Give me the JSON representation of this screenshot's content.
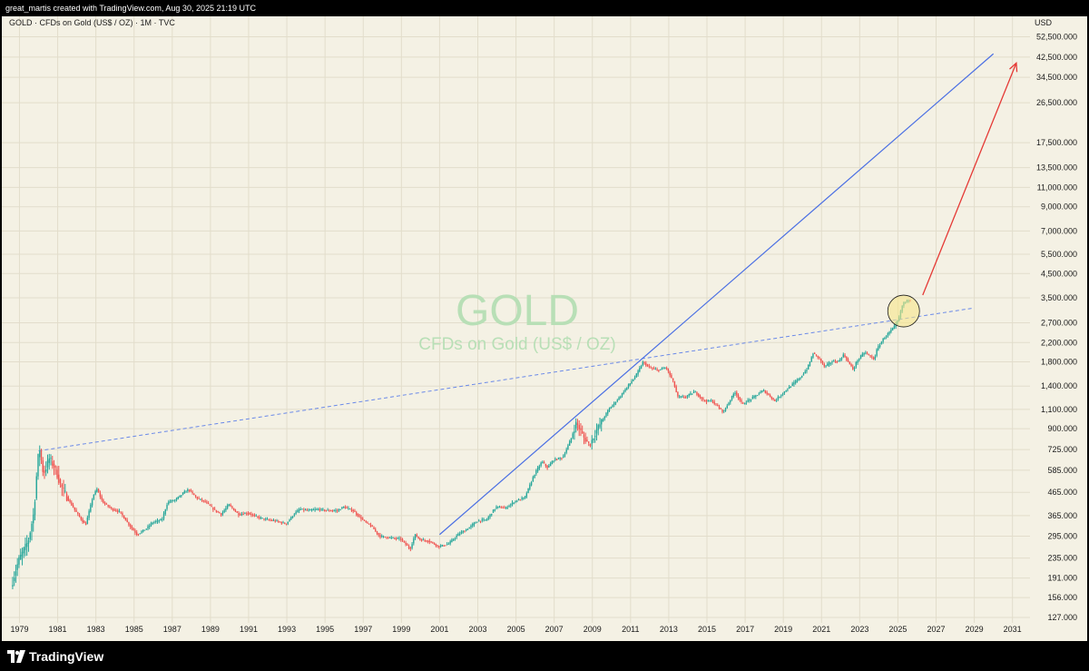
{
  "header": {
    "caption": "great_martis created with TradingView.com, Aug 30, 2025 21:19 UTC"
  },
  "chart": {
    "symbol_line": "GOLD · CFDs on Gold (US$ / OZ) · 1M · TVC",
    "watermark_symbol": "GOLD",
    "watermark_desc": "CFDs on Gold (US$ / OZ)",
    "currency": "USD"
  },
  "chart_data": {
    "type": "candlestick",
    "interval": "1M",
    "log_scale": true,
    "grid": true,
    "y_tick_labels": [
      "52,500.000",
      "42,500.000",
      "34,500.000",
      "26,500.000",
      "17,500.000",
      "13,500.000",
      "11,000.000",
      "9,000.000",
      "7,000.000",
      "5,500.000",
      "4,500.000",
      "3,500.000",
      "2,700.000",
      "2,200.000",
      "1,800.000",
      "1,400.000",
      "1,100.000",
      "900.000",
      "725.000",
      "585.000",
      "465.000",
      "365.000",
      "295.000",
      "235.000",
      "191.000",
      "156.000",
      "127.000"
    ],
    "y_tick_values": [
      52500,
      42500,
      34500,
      26500,
      17500,
      13500,
      11000,
      9000,
      7000,
      5500,
      4500,
      3500,
      2700,
      2200,
      1800,
      1400,
      1100,
      900,
      725,
      585,
      465,
      365,
      295,
      235,
      191,
      156,
      127
    ],
    "x_tick_labels": [
      "1979",
      "1981",
      "1983",
      "1985",
      "1987",
      "1989",
      "1991",
      "1993",
      "1995",
      "1997",
      "1999",
      "2001",
      "2003",
      "2005",
      "2007",
      "2009",
      "2011",
      "2013",
      "2015",
      "2017",
      "2019",
      "2021",
      "2023",
      "2025",
      "2027",
      "2029",
      "2031"
    ],
    "ylim": [
      127,
      52500
    ],
    "xlim": [
      1978.7,
      2031.9
    ],
    "price_path": [
      [
        1978.6,
        175
      ],
      [
        1979.0,
        230
      ],
      [
        1979.5,
        280
      ],
      [
        1979.8,
        380
      ],
      [
        1980.0,
        660
      ],
      [
        1980.1,
        720
      ],
      [
        1980.3,
        560
      ],
      [
        1980.6,
        660
      ],
      [
        1980.9,
        600
      ],
      [
        1981.2,
        500
      ],
      [
        1981.6,
        430
      ],
      [
        1982.0,
        380
      ],
      [
        1982.5,
        330
      ],
      [
        1982.9,
        450
      ],
      [
        1983.1,
        480
      ],
      [
        1983.4,
        420
      ],
      [
        1983.9,
        390
      ],
      [
        1984.3,
        380
      ],
      [
        1984.8,
        330
      ],
      [
        1985.2,
        300
      ],
      [
        1985.7,
        320
      ],
      [
        1986.0,
        340
      ],
      [
        1986.5,
        350
      ],
      [
        1986.8,
        420
      ],
      [
        1987.2,
        430
      ],
      [
        1987.6,
        460
      ],
      [
        1987.9,
        480
      ],
      [
        1988.3,
        440
      ],
      [
        1988.8,
        420
      ],
      [
        1989.2,
        390
      ],
      [
        1989.6,
        370
      ],
      [
        1990.0,
        410
      ],
      [
        1990.5,
        370
      ],
      [
        1991.0,
        375
      ],
      [
        1991.5,
        360
      ],
      [
        1992.0,
        350
      ],
      [
        1992.5,
        345
      ],
      [
        1993.0,
        335
      ],
      [
        1993.4,
        370
      ],
      [
        1993.7,
        390
      ],
      [
        1994.2,
        385
      ],
      [
        1994.7,
        390
      ],
      [
        1995.2,
        385
      ],
      [
        1995.7,
        385
      ],
      [
        1996.0,
        400
      ],
      [
        1996.5,
        385
      ],
      [
        1997.0,
        350
      ],
      [
        1997.5,
        325
      ],
      [
        1997.9,
        295
      ],
      [
        1998.5,
        290
      ],
      [
        1999.0,
        287
      ],
      [
        1999.5,
        258
      ],
      [
        1999.75,
        300
      ],
      [
        2000.0,
        285
      ],
      [
        2000.5,
        280
      ],
      [
        2001.0,
        265
      ],
      [
        2001.5,
        272
      ],
      [
        2002.0,
        300
      ],
      [
        2002.5,
        318
      ],
      [
        2003.0,
        345
      ],
      [
        2003.5,
        350
      ],
      [
        2004.0,
        400
      ],
      [
        2004.5,
        395
      ],
      [
        2005.0,
        425
      ],
      [
        2005.5,
        440
      ],
      [
        2006.0,
        560
      ],
      [
        2006.4,
        640
      ],
      [
        2006.7,
        600
      ],
      [
        2007.0,
        650
      ],
      [
        2007.5,
        670
      ],
      [
        2007.9,
        800
      ],
      [
        2008.2,
        960
      ],
      [
        2008.6,
        820
      ],
      [
        2008.9,
        760
      ],
      [
        2009.3,
        900
      ],
      [
        2009.9,
        1100
      ],
      [
        2010.4,
        1230
      ],
      [
        2010.9,
        1400
      ],
      [
        2011.3,
        1550
      ],
      [
        2011.7,
        1800
      ],
      [
        2012.0,
        1700
      ],
      [
        2012.5,
        1650
      ],
      [
        2012.9,
        1700
      ],
      [
        2013.3,
        1450
      ],
      [
        2013.5,
        1250
      ],
      [
        2013.9,
        1250
      ],
      [
        2014.4,
        1320
      ],
      [
        2014.9,
        1200
      ],
      [
        2015.3,
        1200
      ],
      [
        2015.9,
        1070
      ],
      [
        2016.5,
        1320
      ],
      [
        2016.9,
        1160
      ],
      [
        2017.5,
        1250
      ],
      [
        2018.0,
        1340
      ],
      [
        2018.6,
        1200
      ],
      [
        2019.0,
        1300
      ],
      [
        2019.5,
        1420
      ],
      [
        2019.9,
        1520
      ],
      [
        2020.3,
        1680
      ],
      [
        2020.6,
        1970
      ],
      [
        2020.9,
        1880
      ],
      [
        2021.2,
        1710
      ],
      [
        2021.6,
        1810
      ],
      [
        2021.9,
        1800
      ],
      [
        2022.2,
        1940
      ],
      [
        2022.7,
        1660
      ],
      [
        2022.9,
        1820
      ],
      [
        2023.3,
        1990
      ],
      [
        2023.8,
        1850
      ],
      [
        2023.95,
        2060
      ],
      [
        2024.3,
        2300
      ],
      [
        2024.6,
        2450
      ],
      [
        2024.9,
        2620
      ],
      [
        2025.1,
        2850
      ],
      [
        2025.3,
        3300
      ],
      [
        2025.66,
        3450
      ]
    ],
    "annotations": [
      {
        "type": "trend_line",
        "style": "solid",
        "color": "#4a6fe3",
        "from": [
          2001.0,
          300
        ],
        "to": [
          2030.0,
          44000
        ]
      },
      {
        "type": "trend_line",
        "style": "dashed",
        "color": "#6a89e8",
        "from": [
          1980.0,
          715
        ],
        "to": [
          2029.0,
          3150
        ]
      },
      {
        "type": "arrow",
        "color": "#e53935",
        "from": [
          2026.3,
          3600
        ],
        "to": [
          2031.2,
          40000
        ]
      },
      {
        "type": "circle_highlight",
        "color": "#f7e68a",
        "center": [
          2025.3,
          3050
        ]
      }
    ]
  },
  "footer": {
    "brand": "TradingView"
  }
}
